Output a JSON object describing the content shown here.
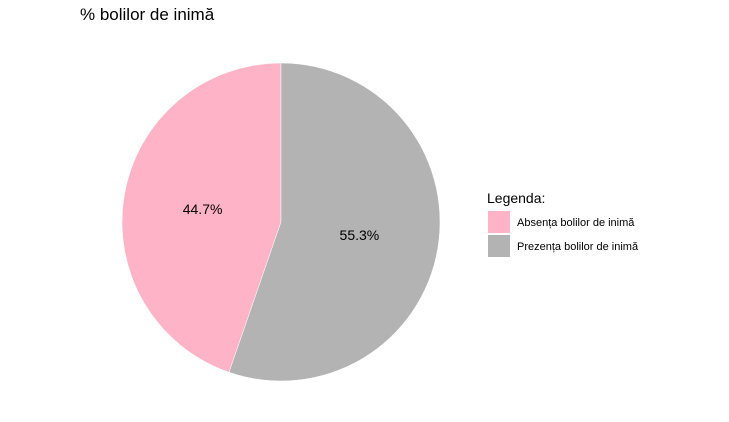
{
  "chart_data": {
    "type": "pie",
    "title": "% bolilor de inimă",
    "legend_title": "Legenda:",
    "legend_position": "right",
    "categories": [
      "Absența bolilor de inimă",
      "Prezența bolilor de inimă"
    ],
    "values": [
      44.7,
      55.3
    ],
    "labels": [
      "44.7%",
      "55.3%"
    ],
    "colors": [
      "#ffb3c6",
      "#b3b3b3"
    ],
    "start": "12 o'clock",
    "direction": "counterclockwise"
  }
}
